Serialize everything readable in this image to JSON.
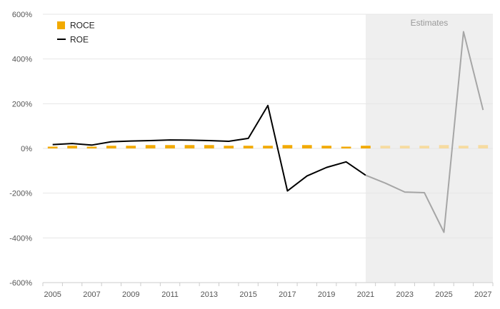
{
  "chart_data": {
    "type": "bar",
    "x": [
      2005,
      2006,
      2007,
      2008,
      2009,
      2010,
      2011,
      2012,
      2013,
      2014,
      2015,
      2016,
      2017,
      2018,
      2019,
      2020,
      2021,
      2022,
      2023,
      2024,
      2025,
      2026,
      2027
    ],
    "x_tick_labels": [
      "2005",
      "2007",
      "2009",
      "2011",
      "2013",
      "2015",
      "2017",
      "2019",
      "2021",
      "2023",
      "2025",
      "2027"
    ],
    "y_tick_labels": [
      "600%",
      "400%",
      "200%",
      "0%",
      "-200%",
      "-400%",
      "-600%"
    ],
    "ylim": [
      -600,
      600
    ],
    "y_unit": "%",
    "grid": true,
    "legend_position": "top-left",
    "estimates_label": "Estimates",
    "estimates_start": 2021,
    "series": [
      {
        "name": "ROCE",
        "type": "bar",
        "color": "#f2aa00",
        "estimate_color": "#f6dba0",
        "values": [
          8,
          12,
          8,
          12,
          12,
          15,
          15,
          15,
          15,
          12,
          12,
          12,
          15,
          15,
          12,
          8,
          12,
          12,
          12,
          12,
          15,
          12,
          15
        ]
      },
      {
        "name": "ROE",
        "type": "line",
        "color": "#000000",
        "estimate_color": "#a6a6a6",
        "values": [
          17,
          22,
          15,
          30,
          33,
          35,
          38,
          37,
          35,
          32,
          45,
          192,
          -190,
          -123,
          -85,
          -60,
          -120,
          -155,
          -195,
          -198,
          -375,
          522,
          172
        ]
      }
    ]
  }
}
